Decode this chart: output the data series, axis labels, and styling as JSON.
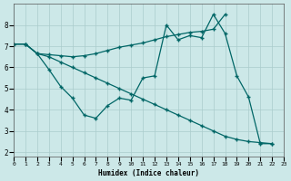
{
  "xlabel": "Humidex (Indice chaleur)",
  "bg_color": "#cce8e8",
  "grid_color": "#aacccc",
  "line_color": "#006666",
  "ylim": [
    1.8,
    9.0
  ],
  "xlim": [
    0,
    23
  ],
  "yticks": [
    2,
    3,
    4,
    5,
    6,
    7,
    8
  ],
  "xticks": [
    0,
    1,
    2,
    3,
    4,
    5,
    6,
    7,
    8,
    9,
    10,
    11,
    12,
    13,
    14,
    15,
    16,
    17,
    18,
    19,
    20,
    21,
    22,
    23
  ],
  "line1_x": [
    0,
    1,
    2,
    3,
    4,
    5,
    6,
    7,
    8,
    9,
    10,
    11,
    12,
    13,
    14,
    15,
    16,
    17,
    18
  ],
  "line1_y": [
    7.1,
    7.1,
    6.65,
    6.6,
    6.55,
    6.5,
    6.55,
    6.65,
    6.8,
    6.95,
    7.05,
    7.15,
    7.3,
    7.45,
    7.55,
    7.65,
    7.7,
    7.8,
    8.5
  ],
  "line2_x": [
    0,
    1,
    2,
    3,
    4,
    5,
    6,
    7,
    8,
    9,
    10,
    11,
    12,
    13,
    14,
    15,
    16,
    17,
    18,
    19,
    20,
    21,
    22
  ],
  "line2_y": [
    7.1,
    7.1,
    6.65,
    5.9,
    5.1,
    4.55,
    3.75,
    3.6,
    4.2,
    4.55,
    4.45,
    5.5,
    5.6,
    8.0,
    7.3,
    7.5,
    7.4,
    8.5,
    7.6,
    5.6,
    4.6,
    2.4,
    2.4
  ],
  "line3_x": [
    0,
    1,
    2,
    3,
    4,
    5,
    6,
    7,
    8,
    9,
    10,
    11,
    12,
    13,
    14,
    15,
    16,
    17,
    18,
    19,
    20,
    21,
    22
  ],
  "line3_y": [
    7.1,
    7.1,
    6.65,
    6.5,
    6.25,
    6.0,
    5.75,
    5.5,
    5.25,
    5.0,
    4.75,
    4.5,
    4.25,
    4.0,
    3.75,
    3.5,
    3.25,
    3.0,
    2.75,
    2.6,
    2.5,
    2.45,
    2.4
  ]
}
